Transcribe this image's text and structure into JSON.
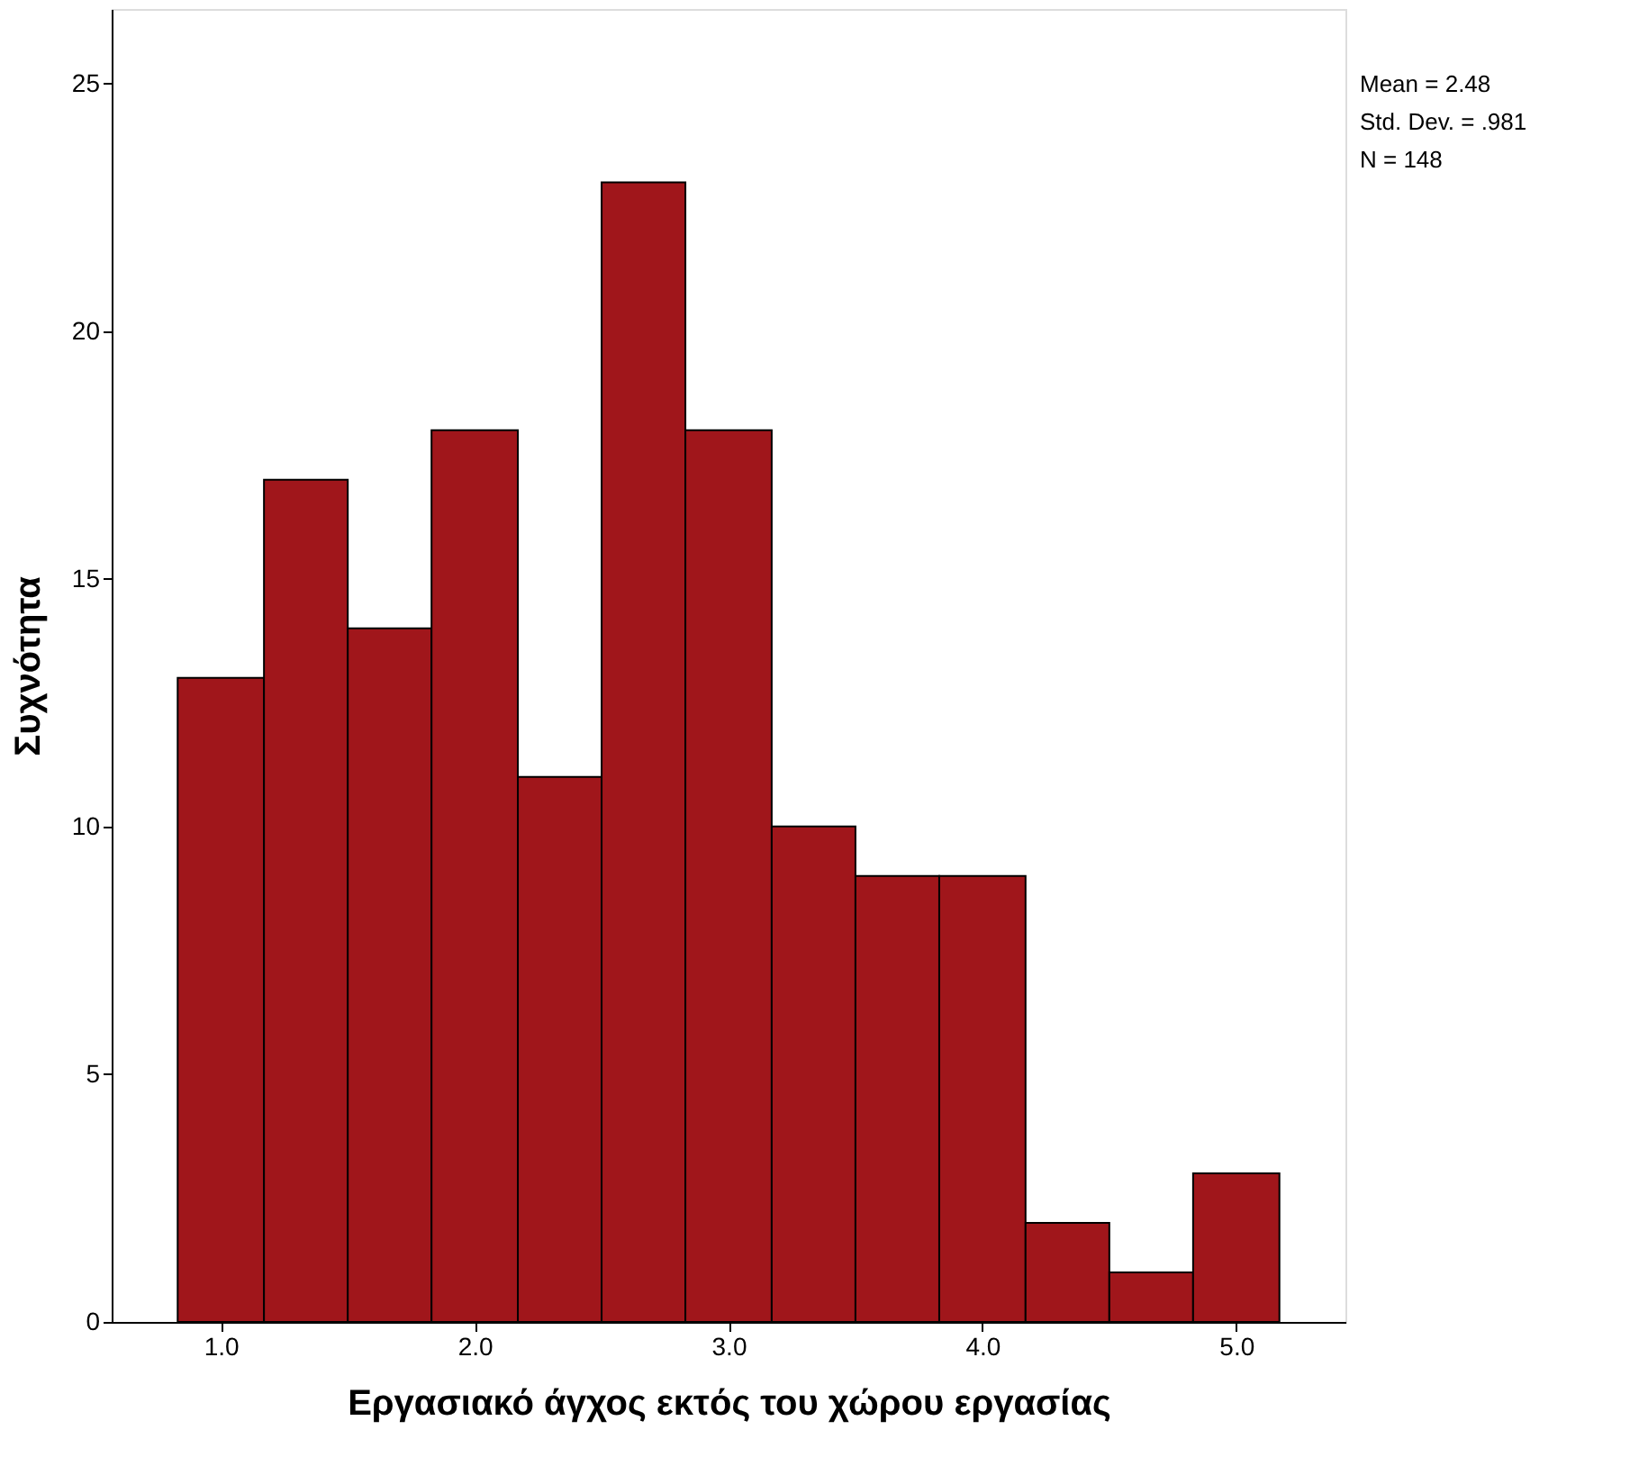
{
  "chart_data": {
    "type": "histogram",
    "xlabel": "Εργασιακό άγχος εκτός του χώρου εργασίας",
    "ylabel": "Συχνότητα",
    "bins": [
      0.83,
      1.17,
      1.5,
      1.83,
      2.17,
      2.5,
      2.83,
      3.17,
      3.5,
      3.83,
      4.17,
      4.5,
      4.83,
      5.17
    ],
    "values": [
      13,
      17,
      14,
      18,
      11,
      23,
      18,
      10,
      9,
      9,
      2,
      1,
      3
    ],
    "color": "#a0161b",
    "xlim": [
      0.57,
      5.43
    ],
    "ylim": [
      0,
      26.5
    ],
    "xticks": [
      {
        "value": 1,
        "label": "1.0"
      },
      {
        "value": 2,
        "label": "2.0"
      },
      {
        "value": 3,
        "label": "3.0"
      },
      {
        "value": 4,
        "label": "4.0"
      },
      {
        "value": 5,
        "label": "5.0"
      }
    ],
    "yticks": [
      0,
      5,
      10,
      15,
      20,
      25
    ],
    "grid": false,
    "annotations": [
      "Mean = 2.48",
      "Std. Dev. = .981",
      "N = 148"
    ]
  }
}
